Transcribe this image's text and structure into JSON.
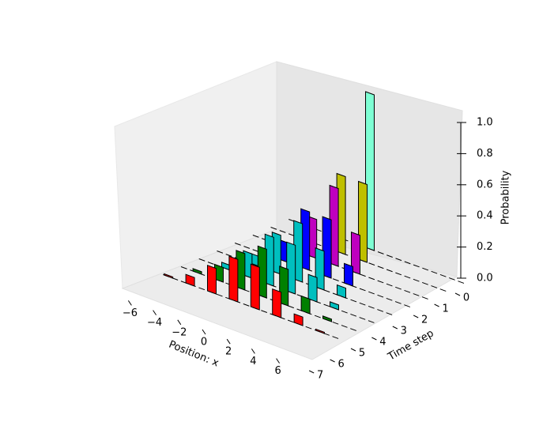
{
  "chart_data": {
    "type": "bar3d",
    "xlabel": "Position: x",
    "ylabel": "Time step",
    "zlabel": "Probability",
    "x": [
      -7,
      -6,
      -5,
      -4,
      -3,
      -2,
      -1,
      0,
      1,
      2,
      3,
      4,
      5,
      6,
      7
    ],
    "series": [
      {
        "color": "#7fffd4",
        "values": [
          0,
          0,
          0,
          0,
          0,
          0,
          0,
          1,
          0,
          0,
          0,
          0,
          0,
          0,
          0
        ]
      },
      {
        "color": "#bfbf00",
        "values": [
          0,
          0,
          0,
          0,
          0,
          0,
          0.5,
          0,
          0.5,
          0,
          0,
          0,
          0,
          0,
          0
        ]
      },
      {
        "color": "#bf00bf",
        "values": [
          0,
          0,
          0,
          0,
          0,
          0.25,
          0,
          0.5,
          0,
          0.25,
          0,
          0,
          0,
          0,
          0
        ]
      },
      {
        "color": "#0000ff",
        "values": [
          0,
          0,
          0,
          0,
          0.125,
          0,
          0.375,
          0,
          0.375,
          0,
          0.125,
          0,
          0,
          0,
          0
        ]
      },
      {
        "color": "#00bfbf",
        "values": [
          0,
          0,
          0,
          0.063,
          0,
          0.25,
          0,
          0.375,
          0,
          0.25,
          0,
          0.063,
          0,
          0,
          0
        ]
      },
      {
        "color": "#00bfbf",
        "values": [
          0,
          0,
          0.031,
          0,
          0.156,
          0,
          0.313,
          0,
          0.313,
          0,
          0.156,
          0,
          0.031,
          0,
          0
        ]
      },
      {
        "color": "#008000",
        "values": [
          0,
          0.016,
          0,
          0.094,
          0,
          0.234,
          0,
          0.313,
          0,
          0.234,
          0,
          0.094,
          0,
          0.016,
          0
        ]
      },
      {
        "color": "#ff0000",
        "values": [
          0.008,
          0,
          0.055,
          0,
          0.164,
          0,
          0.273,
          0,
          0.273,
          0,
          0.164,
          0,
          0.055,
          0,
          0.008
        ]
      }
    ],
    "xticks": [
      {
        "value": -6,
        "label": "−6"
      },
      {
        "value": -4,
        "label": "−4"
      },
      {
        "value": -2,
        "label": "−2"
      },
      0,
      2,
      4,
      6
    ],
    "yticks": [
      0,
      1,
      2,
      3,
      4,
      5,
      6,
      7
    ],
    "zlim": [
      0,
      1
    ],
    "zticks": [
      {
        "value": 0,
        "label": "0.0"
      },
      {
        "value": 0.2,
        "label": "0.2"
      },
      {
        "value": 0.4,
        "label": "0.4"
      },
      {
        "value": 0.6,
        "label": "0.6"
      },
      {
        "value": 0.8,
        "label": "0.8"
      },
      {
        "value": 1,
        "label": "1.0"
      }
    ]
  }
}
